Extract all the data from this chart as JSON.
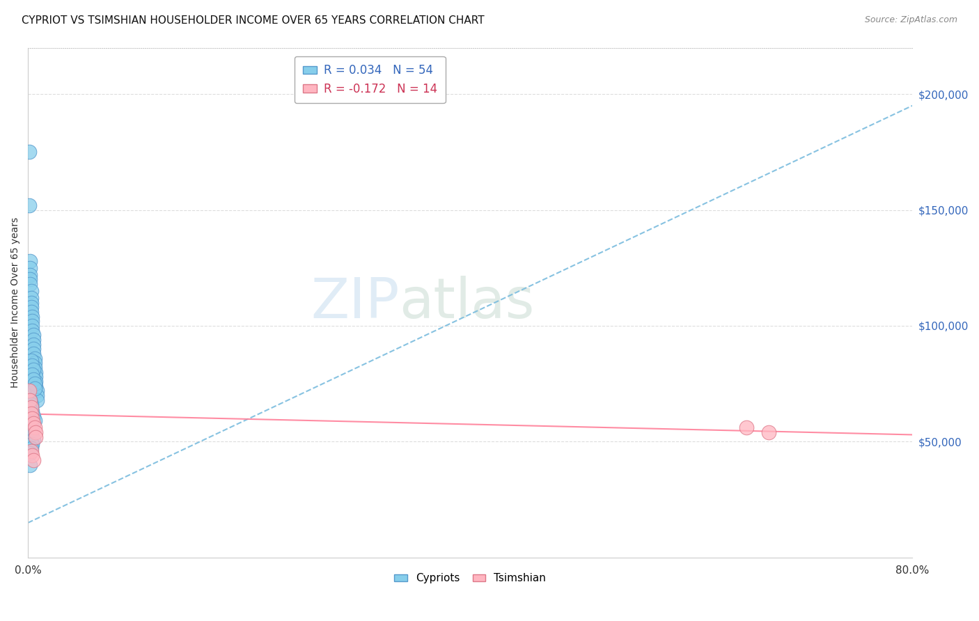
{
  "title": "CYPRIOT VS TSIMSHIAN HOUSEHOLDER INCOME OVER 65 YEARS CORRELATION CHART",
  "source": "Source: ZipAtlas.com",
  "ylabel": "Householder Income Over 65 years",
  "ylabel_right_values": [
    200000,
    150000,
    100000,
    50000
  ],
  "watermark_zip": "ZIP",
  "watermark_atlas": "atlas",
  "cypriot_color": "#87CEEB",
  "cypriot_edge": "#5599CC",
  "tsimshian_color": "#FFB6C1",
  "tsimshian_edge": "#DD7788",
  "cypriot_line_color": "#7ABCDE",
  "tsimshian_line_color": "#FF8099",
  "xlim": [
    0,
    0.8
  ],
  "ylim": [
    0,
    220000
  ],
  "background_color": "#FFFFFF",
  "grid_color": "#DDDDDD",
  "cypriot_x": [
    0.001,
    0.001,
    0.002,
    0.002,
    0.002,
    0.002,
    0.002,
    0.003,
    0.003,
    0.003,
    0.003,
    0.003,
    0.004,
    0.004,
    0.004,
    0.004,
    0.005,
    0.005,
    0.005,
    0.005,
    0.005,
    0.006,
    0.006,
    0.006,
    0.007,
    0.007,
    0.007,
    0.007,
    0.008,
    0.008,
    0.008,
    0.003,
    0.004,
    0.005,
    0.004,
    0.005,
    0.006,
    0.006,
    0.003,
    0.004,
    0.005,
    0.006,
    0.003,
    0.004,
    0.003,
    0.002,
    0.003,
    0.002,
    0.005,
    0.004,
    0.003,
    0.002,
    0.002
  ],
  "cypriot_y": [
    175000,
    152000,
    128000,
    125000,
    122000,
    120000,
    118000,
    115000,
    112000,
    110000,
    108000,
    106000,
    104000,
    102000,
    100000,
    98000,
    96000,
    94000,
    92000,
    90000,
    88000,
    86000,
    84000,
    82000,
    80000,
    78000,
    76000,
    74000,
    72000,
    70000,
    68000,
    85000,
    83000,
    81000,
    79000,
    77000,
    75000,
    73000,
    65000,
    63000,
    61000,
    59000,
    57000,
    55000,
    53000,
    68000,
    66000,
    64000,
    51000,
    49000,
    47000,
    45000,
    40000
  ],
  "tsimshian_x": [
    0.001,
    0.002,
    0.003,
    0.003,
    0.004,
    0.005,
    0.006,
    0.007,
    0.007,
    0.003,
    0.004,
    0.005,
    0.65,
    0.67
  ],
  "tsimshian_y": [
    72000,
    68000,
    65000,
    62000,
    60000,
    58000,
    56000,
    54000,
    52000,
    46000,
    44000,
    42000,
    56000,
    54000
  ],
  "cyp_line_x0": 0.0,
  "cyp_line_y0": 15000,
  "cyp_line_x1": 0.8,
  "cyp_line_y1": 195000,
  "tsim_line_x0": 0.0,
  "tsim_line_y0": 62000,
  "tsim_line_x1": 0.8,
  "tsim_line_y1": 53000
}
